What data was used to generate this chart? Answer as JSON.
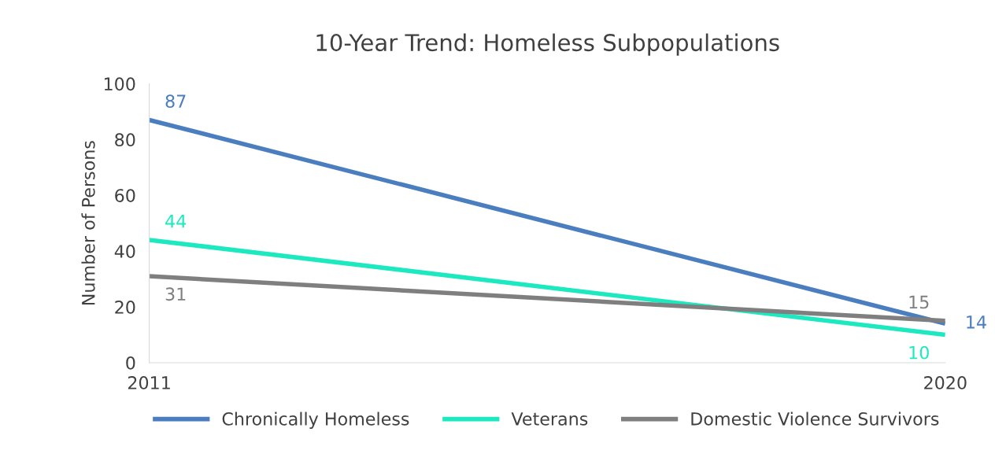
{
  "chart_data": {
    "type": "line",
    "title": "10-Year Trend: Homeless Subpopulations",
    "ylabel": "Number of Persons",
    "categories": [
      "2011",
      "2020"
    ],
    "series": [
      {
        "name": "Chronically Homeless",
        "color": "#4a7ebf",
        "values": [
          87,
          14
        ]
      },
      {
        "name": "Veterans",
        "color": "#1de9c0",
        "values": [
          44,
          10
        ]
      },
      {
        "name": "Domestic Violence Survivors",
        "color": "#7f7f7f",
        "values": [
          31,
          15
        ]
      }
    ],
    "ylim": [
      0,
      100
    ],
    "yticks": [
      0,
      20,
      40,
      60,
      80,
      100
    ],
    "grid": false,
    "legend": "bottom",
    "data_labels": true,
    "marker": "none",
    "line_style": "solid"
  }
}
